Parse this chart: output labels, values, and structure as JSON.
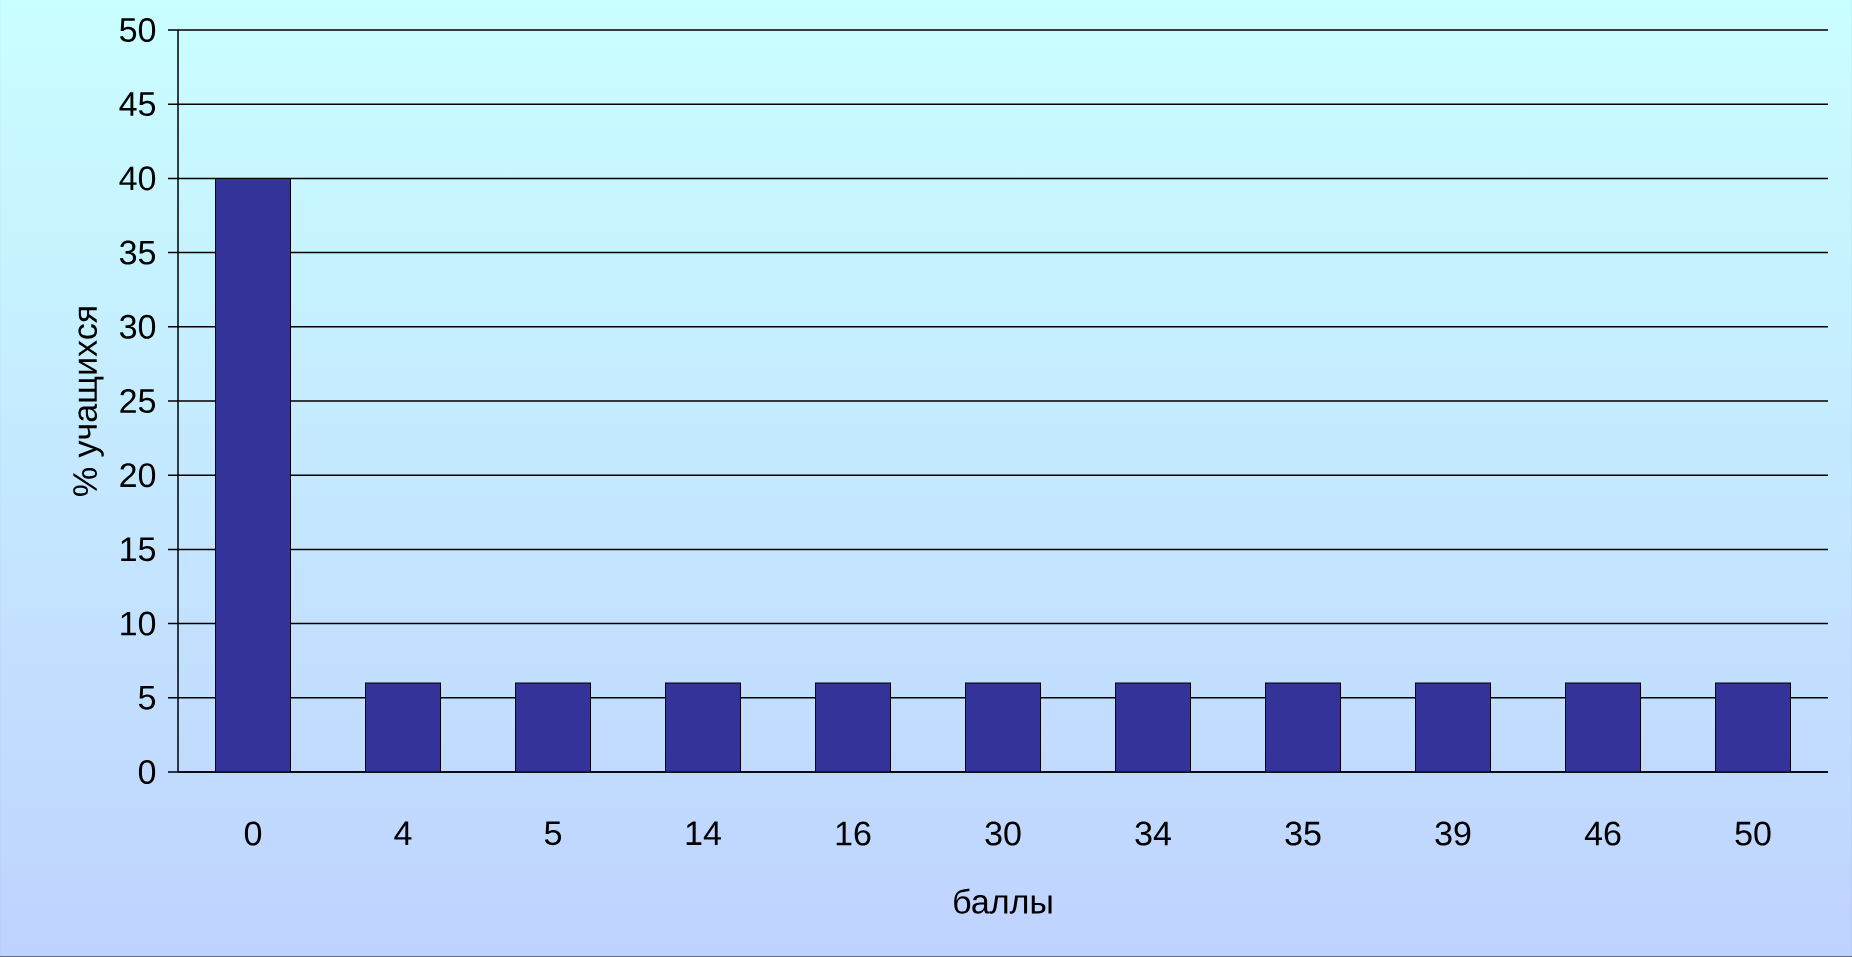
{
  "chart_data": {
    "type": "bar",
    "xlabel": "баллы",
    "ylabel": "% учащихся",
    "categories": [
      "0",
      "4",
      "5",
      "14",
      "16",
      "30",
      "34",
      "35",
      "39",
      "46",
      "50"
    ],
    "values": [
      40,
      6,
      6,
      6,
      6,
      6,
      6,
      6,
      6,
      6,
      6
    ],
    "color": "#333399",
    "ylim": [
      0,
      50
    ],
    "yticks": [
      0,
      5,
      10,
      15,
      20,
      25,
      30,
      35,
      40,
      45,
      50
    ],
    "grid": "y"
  }
}
